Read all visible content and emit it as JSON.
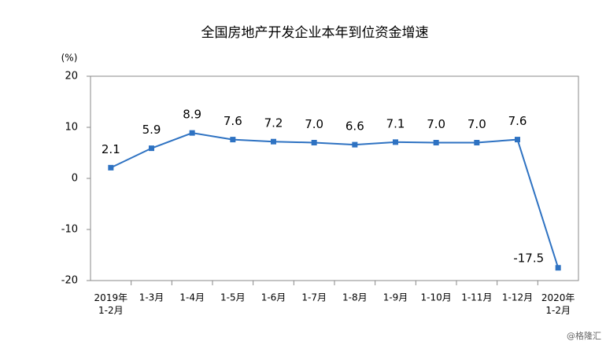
{
  "chart_data": {
    "type": "line",
    "title": "全国房地产开发企业本年到位资金增速",
    "y_label": "(%)",
    "categories": [
      "2019年\n1-2月",
      "1-3月",
      "1-4月",
      "1-5月",
      "1-6月",
      "1-7月",
      "1-8月",
      "1-9月",
      "1-10月",
      "1-11月",
      "1-12月",
      "2020年\n1-2月"
    ],
    "series": [
      {
        "name": "本年到位资金增速",
        "color": "#2e72c2",
        "values": [
          2.1,
          5.9,
          8.9,
          7.6,
          7.2,
          7.0,
          6.6,
          7.1,
          7.0,
          7.0,
          7.6,
          -17.5
        ],
        "value_labels": [
          "2.1",
          "5.9",
          "8.9",
          "7.6",
          "7.2",
          "7.0",
          "6.6",
          "7.1",
          "7.0",
          "7.0",
          "7.6",
          "-17.5"
        ]
      }
    ],
    "ylim": [
      -20,
      20
    ],
    "yticks": [
      -20,
      -10,
      0,
      10,
      20
    ],
    "grid": false,
    "watermark": "@格隆汇"
  }
}
